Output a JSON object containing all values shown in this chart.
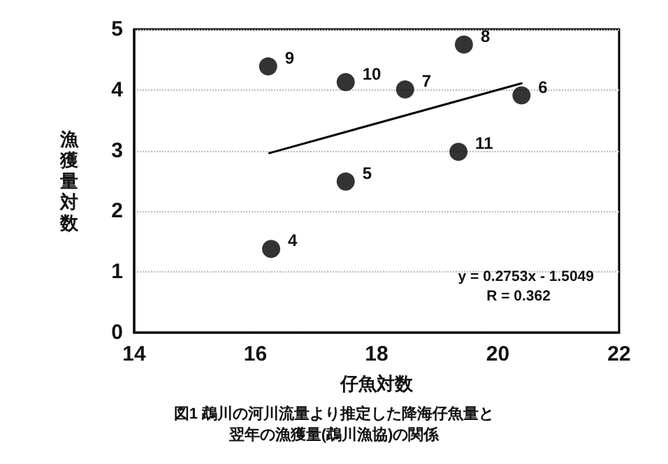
{
  "chart_data": {
    "type": "scatter",
    "title": "図1 鵡川の河川流量より推定した降海仔魚量と翌年の漁獲量(鵡川漁協)の関係",
    "xlabel": "仔魚対数",
    "ylabel": "漁獲量対数",
    "xlim": [
      14,
      22
    ],
    "xticks": [
      14,
      16,
      18,
      20,
      22
    ],
    "ylim": [
      0,
      5
    ],
    "yticks": [
      0,
      1,
      2,
      3,
      4,
      5
    ],
    "grid": "y",
    "marker": "circle",
    "series": [
      {
        "color": "#000000",
        "x": [
          16.26,
          17.49,
          19.35,
          18.47,
          20.39,
          19.44,
          16.21,
          17.49
        ],
        "values": [
          1.38,
          2.49,
          2.98,
          4.01,
          3.91,
          4.75,
          4.39,
          4.13
        ]
      },
      {
        "type": "line",
        "color": "#000000",
        "marker": "none",
        "x": [
          16.23,
          20.39
        ],
        "values": [
          2.96,
          4.11
        ]
      }
    ],
    "annotations": [
      {
        "text": "4",
        "x": 16.26,
        "y": 1.38
      },
      {
        "text": "5",
        "x": 17.49,
        "y": 2.49
      },
      {
        "text": "11",
        "x": 19.35,
        "y": 2.98
      },
      {
        "text": "7",
        "x": 18.47,
        "y": 4.01
      },
      {
        "text": "6",
        "x": 20.39,
        "y": 3.91
      },
      {
        "text": "8",
        "x": 19.44,
        "y": 4.75
      },
      {
        "text": "9",
        "x": 16.21,
        "y": 4.39
      },
      {
        "text": "10",
        "x": 17.49,
        "y": 4.13
      },
      "y = 0.2753x - 1.5049",
      "R = 0.362"
    ]
  }
}
